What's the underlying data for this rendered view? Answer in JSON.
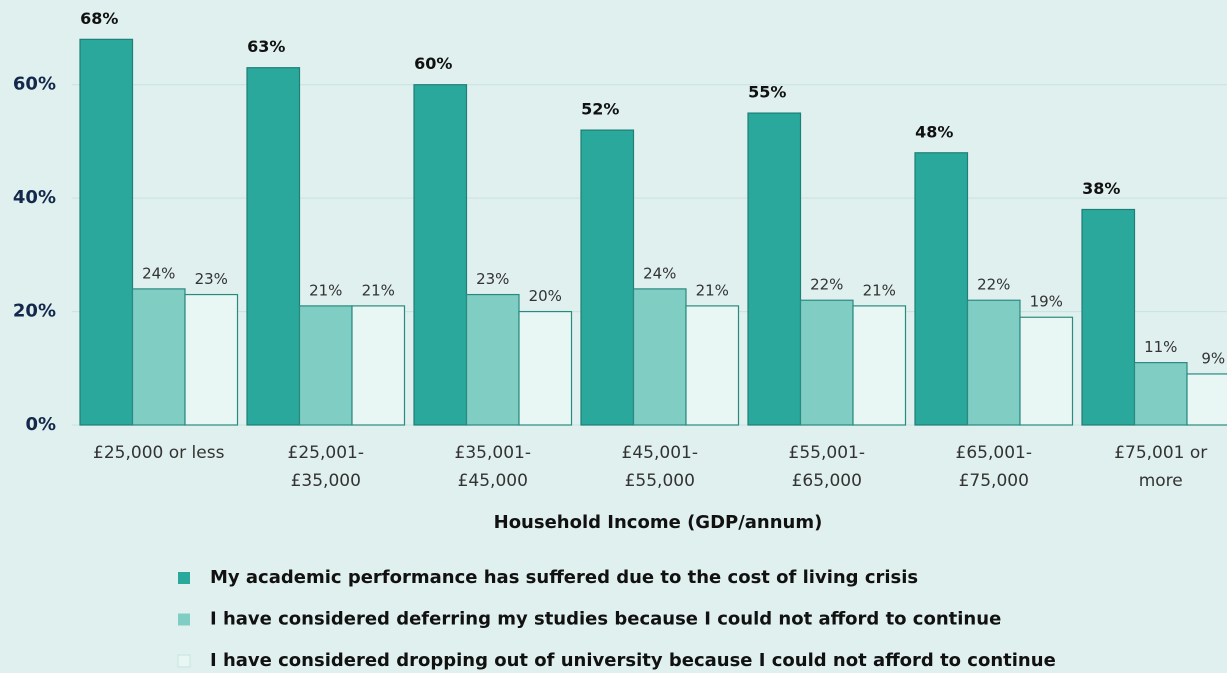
{
  "chart_data": {
    "type": "bar",
    "x_label": "Household Income (GDP/annum)",
    "categories": [
      [
        "£25,000 or less"
      ],
      [
        "£25,001-",
        "£35,000"
      ],
      [
        "£35,001-",
        "£45,000"
      ],
      [
        "£45,001-",
        "£55,000"
      ],
      [
        "£55,001-",
        "£65,000"
      ],
      [
        "£65,001-",
        "£75,000"
      ],
      [
        "£75,001 or",
        "more"
      ]
    ],
    "series": [
      {
        "name": "My academic performance has suffered due to the cost of living crisis",
        "color": "#2aa89c",
        "stroke": "#1f7f76",
        "values": [
          68,
          63,
          60,
          52,
          55,
          48,
          38
        ],
        "value_labels": [
          "68%",
          "63%",
          "60%",
          "52%",
          "55%",
          "48%",
          "38%"
        ]
      },
      {
        "name": "I have considered deferring my studies because I could not afford to continue",
        "color": "#80cdc4",
        "stroke": "#2a8a80",
        "values": [
          24,
          21,
          23,
          24,
          22,
          22,
          11
        ],
        "value_labels": [
          "24%",
          "21%",
          "23%",
          "24%",
          "22%",
          "22%",
          "11%"
        ]
      },
      {
        "name": "I have considered dropping out of university because I could not afford to continue",
        "color": "#e8f6f4",
        "stroke": "#2a8a80",
        "values": [
          23,
          21,
          20,
          21,
          21,
          19,
          9
        ],
        "value_labels": [
          "23%",
          "21%",
          "20%",
          "21%",
          "21%",
          "19%",
          "9%"
        ]
      }
    ],
    "ylim": [
      0,
      70
    ],
    "yticks": [
      {
        "value": 0,
        "label": "0%"
      },
      {
        "value": 20,
        "label": "20%"
      },
      {
        "value": 40,
        "label": "40%"
      },
      {
        "value": 60,
        "label": "60%"
      }
    ],
    "grid": true
  }
}
